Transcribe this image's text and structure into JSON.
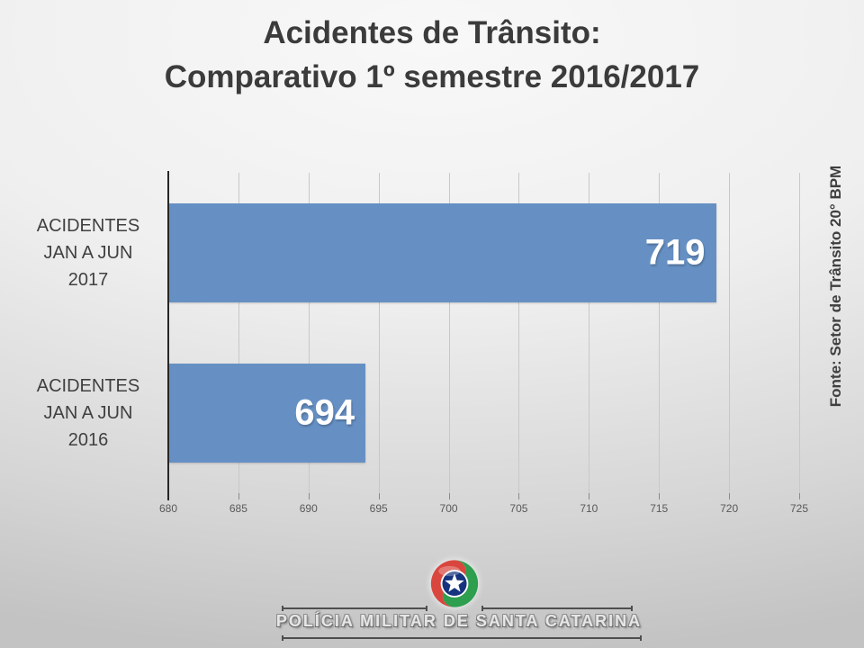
{
  "slide": {
    "title_line1": "Acidentes de Trânsito:",
    "title_line2": "Comparativo 1º semestre 2016/2017",
    "source_note": "Fonte: Setor de Trânsito 20° BPM",
    "footer_org": "POLÍCIA MILITAR DE SANTA CATARINA",
    "emblem_icon": "policia-militar-santa-catarina-star-emblem"
  },
  "colors": {
    "bar_fill": "#6690C4",
    "bar_value_text": "#FFFFFF",
    "axis_line": "#262626",
    "gridline": "#C8C8C8",
    "tick_label_text": "#595959",
    "title_text": "#3B3B3B",
    "category_text": "#404040",
    "background_top": "#F7F7F7",
    "background_bottom": "#C3C3C3"
  },
  "chart_data": {
    "type": "bar",
    "orientation": "horizontal",
    "title": "Acidentes de Trânsito: Comparativo 1º semestre 2016/2017",
    "categories": [
      "ACIDENTES JAN A JUN 2017",
      "ACIDENTES JAN A JUN 2016"
    ],
    "category_lines": [
      [
        "ACIDENTES",
        "JAN A JUN",
        "2017"
      ],
      [
        "ACIDENTES",
        "JAN A JUN",
        "2016"
      ]
    ],
    "values": [
      719,
      694
    ],
    "value_labels": [
      "719",
      "694"
    ],
    "xlim": [
      680,
      725
    ],
    "xticks": [
      680,
      685,
      690,
      695,
      700,
      705,
      710,
      715,
      720,
      725
    ],
    "grid": true,
    "legend": false,
    "source": "Fonte: Setor de Trânsito 20° BPM"
  }
}
